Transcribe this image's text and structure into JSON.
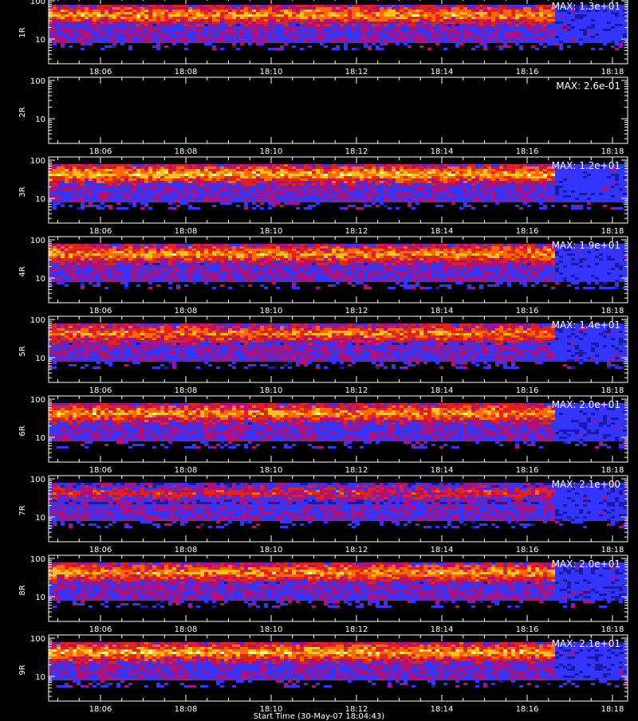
{
  "chart_data": {
    "type": "heatmap",
    "panel_count": 9,
    "x_tick_labels": [
      "18:06",
      "18:08",
      "18:10",
      "18:12",
      "18:14",
      "18:16",
      "18:18"
    ],
    "y_tick_labels": [
      "100",
      "10"
    ],
    "y_scale": "log",
    "colormap": [
      "#000000",
      "#1a1aa6",
      "#3434ff",
      "#b0107a",
      "#e0241a",
      "#ff6a00",
      "#ffc020",
      "#ffff90"
    ],
    "panels": [
      {
        "label": "1R",
        "max_label": "MAX: 1.3e+01",
        "band_intensity": 0.8
      },
      {
        "label": "2R",
        "max_label": "MAX: 2.6e-01",
        "band_intensity": 0.0
      },
      {
        "label": "3R",
        "max_label": "MAX: 1.2e+01",
        "band_intensity": 0.85
      },
      {
        "label": "4R",
        "max_label": "MAX: 1.9e+01",
        "band_intensity": 0.8
      },
      {
        "label": "5R",
        "max_label": "MAX: 1.4e+01",
        "band_intensity": 0.75
      },
      {
        "label": "6R",
        "max_label": "MAX: 2.0e+01",
        "band_intensity": 0.8
      },
      {
        "label": "7R",
        "max_label": "MAX: 2.1e+00",
        "band_intensity": 0.55
      },
      {
        "label": "8R",
        "max_label": "MAX: 2.0e+01",
        "band_intensity": 0.8
      },
      {
        "label": "9R",
        "max_label": "MAX: 2.1e+01",
        "band_intensity": 0.85
      }
    ]
  },
  "footer_text": "Start Time (30-May-07 18:04:43)"
}
